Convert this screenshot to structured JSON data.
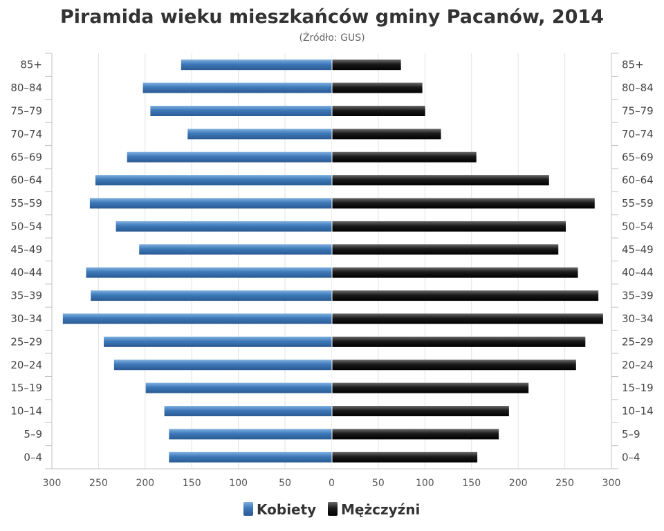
{
  "chart_data": {
    "type": "bar",
    "orientation": "horizontal-pyramid",
    "title": "Piramida wieku mieszkańców gminy Pacanów, 2014",
    "subtitle": "(Źródło: GUS)",
    "categories": [
      "85+",
      "80–84",
      "75–79",
      "70–74",
      "65–69",
      "60–64",
      "55–59",
      "50–54",
      "45–49",
      "40–44",
      "35–39",
      "30–34",
      "25–29",
      "20–24",
      "15–19",
      "10–14",
      "5–9",
      "0–4"
    ],
    "series": [
      {
        "name": "Kobiety",
        "color": "#3a70aa",
        "side": "left",
        "values": [
          162,
          203,
          195,
          155,
          220,
          254,
          260,
          232,
          207,
          264,
          259,
          289,
          245,
          234,
          200,
          180,
          175,
          175
        ]
      },
      {
        "name": "Mężczyźni",
        "color": "#111111",
        "side": "right",
        "values": [
          74,
          97,
          100,
          117,
          155,
          233,
          282,
          251,
          243,
          264,
          286,
          291,
          272,
          262,
          211,
          190,
          179,
          156
        ]
      }
    ],
    "xlim": [
      -300,
      300
    ],
    "xticks": [
      "300",
      "250",
      "200",
      "150",
      "100",
      "50",
      "0",
      "50",
      "100",
      "150",
      "200",
      "250",
      "300"
    ],
    "grid": true,
    "legend": "bottom-center"
  }
}
